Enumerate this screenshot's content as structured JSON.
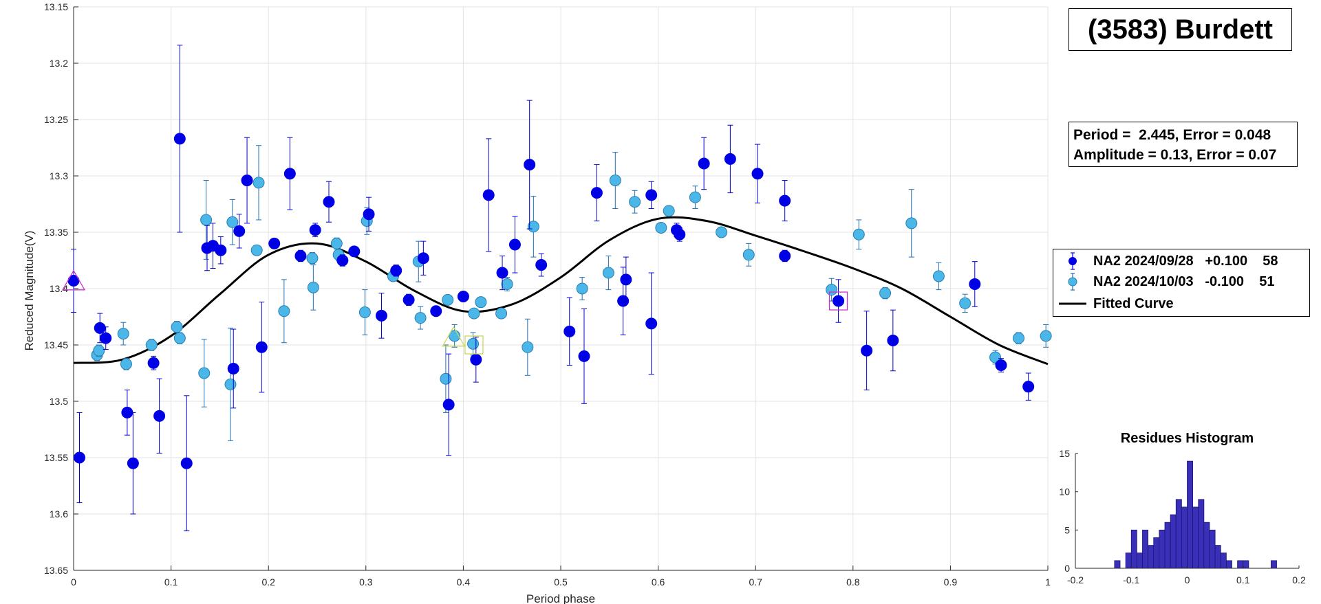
{
  "title_box": {
    "text": "(3583) Burdett"
  },
  "info_box": {
    "period_line": "Period =  2.445, Error = 0.048",
    "amplitude_line": "Amplitude = 0.13, Error = 0.07"
  },
  "legend": {
    "entries": [
      {
        "text": "NA2 2024/09/28   +0.100    58",
        "color": "#0000e6"
      },
      {
        "text": "NA2 2024/10/03   -0.100    51",
        "color": "#4ab7e8"
      },
      {
        "text": "Fitted Curve",
        "color": "#000000"
      }
    ]
  },
  "chart_data": [
    {
      "type": "scatter",
      "xlabel": "Period phase",
      "ylabel": "Reduced Magnitude(V)",
      "xlim": [
        0,
        1
      ],
      "ylim": [
        13.15,
        13.65
      ],
      "y_reversed": true,
      "grid": true,
      "x_ticks": [
        "0",
        "0.1",
        "0.2",
        "0.3",
        "0.4",
        "0.5",
        "0.6",
        "0.7",
        "0.8",
        "0.9",
        "1"
      ],
      "y_ticks": [
        "13.15",
        "13.2",
        "13.25",
        "13.3",
        "13.35",
        "13.4",
        "13.45",
        "13.5",
        "13.55",
        "13.6",
        "13.65"
      ],
      "legend_position": "east",
      "series": [
        {
          "name": "NA2 2024/09/28   +0.100    58",
          "color": "#0000e6",
          "points": [
            {
              "x": 0.0,
              "y": 13.393,
              "err": 0.028
            },
            {
              "x": 0.006,
              "y": 13.55,
              "err": 0.04
            },
            {
              "x": 0.027,
              "y": 13.435,
              "err": 0.013
            },
            {
              "x": 0.033,
              "y": 13.444,
              "err": 0.01
            },
            {
              "x": 0.055,
              "y": 13.51,
              "err": 0.02
            },
            {
              "x": 0.061,
              "y": 13.555,
              "err": 0.045
            },
            {
              "x": 0.082,
              "y": 13.466,
              "err": 0.006
            },
            {
              "x": 0.088,
              "y": 13.513,
              "err": 0.033
            },
            {
              "x": 0.109,
              "y": 13.267,
              "err": 0.083
            },
            {
              "x": 0.116,
              "y": 13.555,
              "err": 0.06
            },
            {
              "x": 0.137,
              "y": 13.364,
              "err": 0.02
            },
            {
              "x": 0.143,
              "y": 13.362,
              "err": 0.02
            },
            {
              "x": 0.151,
              "y": 13.366,
              "err": 0.012
            },
            {
              "x": 0.164,
              "y": 13.471,
              "err": 0.035
            },
            {
              "x": 0.17,
              "y": 13.349,
              "err": 0.015
            },
            {
              "x": 0.178,
              "y": 13.304,
              "err": 0.038
            },
            {
              "x": 0.193,
              "y": 13.452,
              "err": 0.04
            },
            {
              "x": 0.206,
              "y": 13.36,
              "err": 0.004
            },
            {
              "x": 0.222,
              "y": 13.298,
              "err": 0.032
            },
            {
              "x": 0.233,
              "y": 13.371,
              "err": 0.005
            },
            {
              "x": 0.248,
              "y": 13.348,
              "err": 0.006
            },
            {
              "x": 0.262,
              "y": 13.323,
              "err": 0.018
            },
            {
              "x": 0.276,
              "y": 13.375,
              "err": 0.005
            },
            {
              "x": 0.288,
              "y": 13.367,
              "err": 0.004
            },
            {
              "x": 0.303,
              "y": 13.334,
              "err": 0.015
            },
            {
              "x": 0.316,
              "y": 13.424,
              "err": 0.02
            },
            {
              "x": 0.331,
              "y": 13.384,
              "err": 0.005
            },
            {
              "x": 0.344,
              "y": 13.41,
              "err": 0.005
            },
            {
              "x": 0.359,
              "y": 13.373,
              "err": 0.015
            },
            {
              "x": 0.372,
              "y": 13.42,
              "err": 0.004
            },
            {
              "x": 0.385,
              "y": 13.503,
              "err": 0.045
            },
            {
              "x": 0.4,
              "y": 13.407,
              "err": 0.004
            },
            {
              "x": 0.413,
              "y": 13.463,
              "err": 0.02
            },
            {
              "x": 0.426,
              "y": 13.317,
              "err": 0.05
            },
            {
              "x": 0.44,
              "y": 13.386,
              "err": 0.015
            },
            {
              "x": 0.453,
              "y": 13.361,
              "err": 0.025
            },
            {
              "x": 0.468,
              "y": 13.29,
              "err": 0.057
            },
            {
              "x": 0.48,
              "y": 13.379,
              "err": 0.01
            },
            {
              "x": 0.509,
              "y": 13.438,
              "err": 0.03
            },
            {
              "x": 0.524,
              "y": 13.46,
              "err": 0.042
            },
            {
              "x": 0.537,
              "y": 13.315,
              "err": 0.025
            },
            {
              "x": 0.564,
              "y": 13.411,
              "err": 0.03
            },
            {
              "x": 0.567,
              "y": 13.392,
              "err": 0.02
            },
            {
              "x": 0.593,
              "y": 13.431,
              "err": 0.045
            },
            {
              "x": 0.593,
              "y": 13.317,
              "err": 0.012
            },
            {
              "x": 0.619,
              "y": 13.348,
              "err": 0.006
            },
            {
              "x": 0.622,
              "y": 13.352,
              "err": 0.006
            },
            {
              "x": 0.647,
              "y": 13.289,
              "err": 0.023
            },
            {
              "x": 0.674,
              "y": 13.285,
              "err": 0.03
            },
            {
              "x": 0.702,
              "y": 13.298,
              "err": 0.026
            },
            {
              "x": 0.73,
              "y": 13.322,
              "err": 0.018
            },
            {
              "x": 0.73,
              "y": 13.371,
              "err": 0.005
            },
            {
              "x": 0.785,
              "y": 13.411,
              "err": 0.019
            },
            {
              "x": 0.814,
              "y": 13.455,
              "err": 0.035
            },
            {
              "x": 0.841,
              "y": 13.446,
              "err": 0.027
            },
            {
              "x": 0.925,
              "y": 13.396,
              "err": 0.02
            },
            {
              "x": 0.952,
              "y": 13.468,
              "err": 0.006
            },
            {
              "x": 0.98,
              "y": 13.487,
              "err": 0.012
            }
          ]
        },
        {
          "name": "NA2 2024/10/03   -0.100    51",
          "color": "#4ab7e8",
          "points": [
            {
              "x": 0.024,
              "y": 13.459,
              "err": 0.005
            },
            {
              "x": 0.026,
              "y": 13.455,
              "err": 0.005
            },
            {
              "x": 0.051,
              "y": 13.44,
              "err": 0.01
            },
            {
              "x": 0.054,
              "y": 13.467,
              "err": 0.005
            },
            {
              "x": 0.08,
              "y": 13.45,
              "err": 0.005
            },
            {
              "x": 0.106,
              "y": 13.434,
              "err": 0.005
            },
            {
              "x": 0.109,
              "y": 13.444,
              "err": 0.005
            },
            {
              "x": 0.134,
              "y": 13.475,
              "err": 0.03
            },
            {
              "x": 0.136,
              "y": 13.339,
              "err": 0.035
            },
            {
              "x": 0.161,
              "y": 13.485,
              "err": 0.05
            },
            {
              "x": 0.163,
              "y": 13.341,
              "err": 0.02
            },
            {
              "x": 0.188,
              "y": 13.366,
              "err": 0.004
            },
            {
              "x": 0.19,
              "y": 13.306,
              "err": 0.033
            },
            {
              "x": 0.216,
              "y": 13.42,
              "err": 0.028
            },
            {
              "x": 0.245,
              "y": 13.373,
              "err": 0.005
            },
            {
              "x": 0.246,
              "y": 13.399,
              "err": 0.02
            },
            {
              "x": 0.27,
              "y": 13.36,
              "err": 0.005
            },
            {
              "x": 0.272,
              "y": 13.37,
              "err": 0.005
            },
            {
              "x": 0.299,
              "y": 13.421,
              "err": 0.02
            },
            {
              "x": 0.301,
              "y": 13.34,
              "err": 0.012
            },
            {
              "x": 0.328,
              "y": 13.389,
              "err": 0.004
            },
            {
              "x": 0.354,
              "y": 13.376,
              "err": 0.018
            },
            {
              "x": 0.356,
              "y": 13.426,
              "err": 0.01
            },
            {
              "x": 0.382,
              "y": 13.48,
              "err": 0.03
            },
            {
              "x": 0.384,
              "y": 13.41,
              "err": 0.004
            },
            {
              "x": 0.391,
              "y": 13.442,
              "err": 0.01
            },
            {
              "x": 0.41,
              "y": 13.449,
              "err": 0.01
            },
            {
              "x": 0.411,
              "y": 13.422,
              "err": 0.004
            },
            {
              "x": 0.418,
              "y": 13.412,
              "err": 0.004
            },
            {
              "x": 0.439,
              "y": 13.422,
              "err": 0.004
            },
            {
              "x": 0.445,
              "y": 13.396,
              "err": 0.006
            },
            {
              "x": 0.466,
              "y": 13.452,
              "err": 0.025
            },
            {
              "x": 0.472,
              "y": 13.345,
              "err": 0.027
            },
            {
              "x": 0.522,
              "y": 13.4,
              "err": 0.01
            },
            {
              "x": 0.549,
              "y": 13.386,
              "err": 0.015
            },
            {
              "x": 0.556,
              "y": 13.304,
              "err": 0.025
            },
            {
              "x": 0.576,
              "y": 13.323,
              "err": 0.01
            },
            {
              "x": 0.603,
              "y": 13.346,
              "err": 0.004
            },
            {
              "x": 0.611,
              "y": 13.331,
              "err": 0.004
            },
            {
              "x": 0.638,
              "y": 13.319,
              "err": 0.01
            },
            {
              "x": 0.665,
              "y": 13.35,
              "err": 0.004
            },
            {
              "x": 0.693,
              "y": 13.37,
              "err": 0.01
            },
            {
              "x": 0.778,
              "y": 13.401,
              "err": 0.01
            },
            {
              "x": 0.806,
              "y": 13.352,
              "err": 0.013
            },
            {
              "x": 0.833,
              "y": 13.404,
              "err": 0.005
            },
            {
              "x": 0.86,
              "y": 13.342,
              "err": 0.03
            },
            {
              "x": 0.888,
              "y": 13.389,
              "err": 0.012
            },
            {
              "x": 0.915,
              "y": 13.413,
              "err": 0.008
            },
            {
              "x": 0.946,
              "y": 13.461,
              "err": 0.006
            },
            {
              "x": 0.97,
              "y": 13.444,
              "err": 0.005
            },
            {
              "x": 0.998,
              "y": 13.442,
              "err": 0.01
            }
          ]
        },
        {
          "name": "Fitted Curve",
          "color": "#000000",
          "type": "line",
          "x": [
            0,
            0.05,
            0.1,
            0.15,
            0.2,
            0.25,
            0.3,
            0.35,
            0.4,
            0.45,
            0.5,
            0.55,
            0.6,
            0.65,
            0.7,
            0.75,
            0.8,
            0.85,
            0.9,
            0.95,
            1
          ],
          "y": [
            13.466,
            13.463,
            13.442,
            13.405,
            13.37,
            13.36,
            13.376,
            13.402,
            13.42,
            13.414,
            13.39,
            13.357,
            13.338,
            13.34,
            13.353,
            13.367,
            13.382,
            13.4,
            13.425,
            13.45,
            13.467
          ]
        }
      ],
      "markers": [
        {
          "shape": "triangle",
          "x": 0.0,
          "y": 13.395,
          "color": "#cc33cc"
        },
        {
          "shape": "triangle",
          "x": 0.39,
          "y": 13.445,
          "color": "#c8d860"
        },
        {
          "shape": "square",
          "x": 0.411,
          "y": 13.45,
          "color": "#c8d860"
        },
        {
          "shape": "square",
          "x": 0.785,
          "y": 13.411,
          "color": "#cc33cc"
        }
      ]
    },
    {
      "type": "bar",
      "title": "Residues Histogram",
      "xlim": [
        -0.2,
        0.2
      ],
      "ylim": [
        0,
        15
      ],
      "x_ticks": [
        "-0.2",
        "-0.1",
        "0",
        "0.1",
        "0.2"
      ],
      "y_ticks": [
        "0",
        "5",
        "10",
        "15"
      ],
      "color": "#3a2fb8",
      "bin_width": 0.01,
      "bin_centers": [
        -0.125,
        -0.115,
        -0.105,
        -0.095,
        -0.085,
        -0.075,
        -0.065,
        -0.055,
        -0.045,
        -0.035,
        -0.025,
        -0.015,
        -0.005,
        0.005,
        0.015,
        0.025,
        0.035,
        0.045,
        0.055,
        0.065,
        0.075,
        0.085,
        0.095,
        0.105,
        0.115,
        0.125,
        0.135,
        0.145,
        0.155,
        0.165
      ],
      "values": [
        1,
        0,
        2,
        5,
        2,
        5,
        3,
        4,
        5,
        6,
        7,
        9,
        8,
        14,
        8,
        9,
        6,
        5,
        3,
        2,
        1,
        0,
        1,
        1,
        0,
        0,
        0,
        0,
        1,
        0
      ]
    }
  ]
}
